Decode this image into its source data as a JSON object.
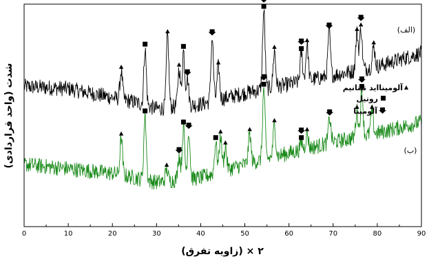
{
  "chart_data": {
    "type": "line",
    "xlabel": "۲ × (زاویه تفرق)",
    "ylabel": "شدت (واحد قراردادی)",
    "xlim": [
      0,
      90
    ],
    "xticks": [
      0,
      10,
      20,
      30,
      40,
      50,
      60,
      70,
      80,
      90
    ],
    "grid": false,
    "legend": {
      "placement": "right",
      "entries": [
        {
          "marker": "triangle",
          "label": "آلومینااید تیتانیم"
        },
        {
          "marker": "square",
          "label": "روتیل"
        },
        {
          "marker": "arrow-down",
          "label": "آلومینا"
        }
      ]
    },
    "series": [
      {
        "name": "(الف)",
        "color": "#000000",
        "baseline": [
          [
            0,
            0.63
          ],
          [
            10,
            0.62
          ],
          [
            20,
            0.58
          ],
          [
            25,
            0.56
          ],
          [
            30,
            0.53
          ],
          [
            40,
            0.55
          ],
          [
            50,
            0.6
          ],
          [
            60,
            0.64
          ],
          [
            70,
            0.68
          ],
          [
            80,
            0.72
          ],
          [
            90,
            0.78
          ]
        ],
        "peaks": [
          {
            "x": 22.0,
            "y": 0.7,
            "phase": "triangle"
          },
          {
            "x": 27.4,
            "y": 0.8,
            "phase": "square"
          },
          {
            "x": 32.5,
            "y": 0.86,
            "phase": "triangle"
          },
          {
            "x": 35.1,
            "y": 0.71,
            "phase": "triangle"
          },
          {
            "x": 36.1,
            "y": 0.79,
            "phase": "square"
          },
          {
            "x": 37.0,
            "y": 0.67,
            "phase": "arrow-down"
          },
          {
            "x": 42.6,
            "y": 0.85,
            "phase": "arrow-down"
          },
          {
            "x": 44.0,
            "y": 0.72,
            "phase": "triangle"
          },
          {
            "x": 54.3,
            "y": 0.97,
            "phase": "square",
            "second": "arrow-down"
          },
          {
            "x": 56.7,
            "y": 0.79,
            "phase": "triangle"
          },
          {
            "x": 62.8,
            "y": 0.78,
            "phase": "square",
            "second": "arrow-down"
          },
          {
            "x": 64.1,
            "y": 0.82,
            "phase": "triangle"
          },
          {
            "x": 69.1,
            "y": 0.88,
            "phase": "arrow-down"
          },
          {
            "x": 75.4,
            "y": 0.87,
            "phase": "triangle"
          },
          {
            "x": 76.3,
            "y": 0.89,
            "phase": "triangle",
            "second": "arrow-down"
          },
          {
            "x": 79.2,
            "y": 0.81,
            "phase": "triangle"
          }
        ]
      },
      {
        "name": "(ب)",
        "color": "#1a8a1a",
        "baseline": [
          [
            0,
            0.28
          ],
          [
            10,
            0.26
          ],
          [
            20,
            0.24
          ],
          [
            30,
            0.2
          ],
          [
            40,
            0.22
          ],
          [
            50,
            0.28
          ],
          [
            60,
            0.33
          ],
          [
            70,
            0.38
          ],
          [
            80,
            0.42
          ],
          [
            90,
            0.47
          ]
        ],
        "peaks": [
          {
            "x": 22.0,
            "y": 0.4,
            "phase": "triangle"
          },
          {
            "x": 27.4,
            "y": 0.5,
            "phase": "square"
          },
          {
            "x": 32.3,
            "y": 0.26,
            "phase": "triangle"
          },
          {
            "x": 35.1,
            "y": 0.32,
            "phase": "arrow-down"
          },
          {
            "x": 36.1,
            "y": 0.45,
            "phase": "square"
          },
          {
            "x": 37.3,
            "y": 0.43,
            "phase": "arrow-down"
          },
          {
            "x": 43.4,
            "y": 0.38,
            "phase": "square"
          },
          {
            "x": 44.5,
            "y": 0.41,
            "phase": "triangle"
          },
          {
            "x": 45.6,
            "y": 0.36,
            "phase": "triangle"
          },
          {
            "x": 51.1,
            "y": 0.42,
            "phase": "triangle"
          },
          {
            "x": 54.3,
            "y": 0.62,
            "phase": "square",
            "second": "arrow-down"
          },
          {
            "x": 56.7,
            "y": 0.46,
            "phase": "triangle"
          },
          {
            "x": 62.8,
            "y": 0.38,
            "phase": "square",
            "second": "arrow-down"
          },
          {
            "x": 64.1,
            "y": 0.42,
            "phase": "triangle"
          },
          {
            "x": 69.2,
            "y": 0.49,
            "phase": "arrow-down"
          },
          {
            "x": 75.4,
            "y": 0.52,
            "phase": "triangle"
          },
          {
            "x": 76.5,
            "y": 0.61,
            "phase": "square",
            "second": "arrow-down"
          },
          {
            "x": 78.8,
            "y": 0.52,
            "phase": "triangle"
          }
        ]
      }
    ]
  }
}
